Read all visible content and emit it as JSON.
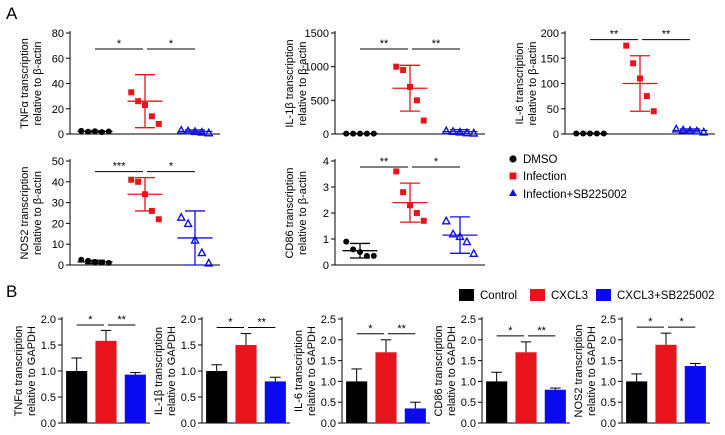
{
  "panel_labels": {
    "a": "A",
    "b": "B"
  },
  "colors": {
    "dmso": "#000000",
    "infection": "#e8141c",
    "sb": "#1010e0",
    "control": "#000000",
    "cxcl3": "#e8141c",
    "cxcl3_sb": "#0a0af0"
  },
  "legend_a": [
    {
      "label": "DMSO",
      "marker": "circle",
      "color": "#000000"
    },
    {
      "label": "Infection",
      "marker": "square",
      "color": "#e8141c"
    },
    {
      "label": "Infection+SB225002",
      "marker": "triangle",
      "color": "#1010e0"
    }
  ],
  "legend_b": [
    {
      "label": "Control",
      "color": "#000000"
    },
    {
      "label": "CXCL3",
      "color": "#e8141c"
    },
    {
      "label": "CXCL3+SB225002",
      "color": "#0a0af0"
    }
  ],
  "chart_data": [
    {
      "type": "scatter",
      "panel": "A",
      "ylabel": [
        "TNFα transcription",
        "relative to β-actin"
      ],
      "ylim": [
        0,
        80
      ],
      "yticks": [
        0,
        20,
        40,
        60,
        80
      ],
      "groups": [
        {
          "name": "DMSO",
          "marker": "circle",
          "color": "#000000",
          "points": [
            2.5,
            1.8,
            2.2,
            1.5,
            2.0
          ],
          "mean": 2.0,
          "sd": 0.5
        },
        {
          "name": "Infection",
          "marker": "square",
          "color": "#e8141c",
          "points": [
            33,
            26,
            23,
            14,
            8
          ],
          "mean": 26,
          "sd": 21
        },
        {
          "name": "Infection+SB225002",
          "marker": "triangle",
          "color": "#1010e0",
          "points": [
            3,
            2.5,
            2,
            1.5,
            1
          ],
          "mean": 2,
          "sd": 1.2
        }
      ],
      "significance": [
        {
          "label": "*"
        },
        {
          "label": "*"
        }
      ]
    },
    {
      "type": "scatter",
      "panel": "A",
      "ylabel": [
        "IL-1β transcription",
        "relative to β-actin"
      ],
      "ylim": [
        0,
        1500
      ],
      "yticks": [
        0,
        500,
        1000,
        1500
      ],
      "groups": [
        {
          "name": "DMSO",
          "marker": "circle",
          "color": "#000000",
          "points": [
            5,
            5,
            5,
            5,
            5
          ],
          "mean": 5,
          "sd": 2
        },
        {
          "name": "Infection",
          "marker": "square",
          "color": "#e8141c",
          "points": [
            1000,
            950,
            700,
            500,
            200
          ],
          "mean": 680,
          "sd": 340
        },
        {
          "name": "Infection+SB225002",
          "marker": "triangle",
          "color": "#1010e0",
          "points": [
            50,
            40,
            30,
            20,
            15
          ],
          "mean": 35,
          "sd": 30
        }
      ],
      "significance": [
        {
          "label": "**"
        },
        {
          "label": "**"
        }
      ]
    },
    {
      "type": "scatter",
      "panel": "A",
      "ylabel": [
        "IL-6 transcription",
        "relative to β-actin"
      ],
      "ylim": [
        0,
        200
      ],
      "yticks": [
        0,
        50,
        100,
        150,
        200
      ],
      "groups": [
        {
          "name": "DMSO",
          "marker": "circle",
          "color": "#000000",
          "points": [
            1,
            1,
            1,
            1,
            1
          ],
          "mean": 1,
          "sd": 0.5
        },
        {
          "name": "Infection",
          "marker": "square",
          "color": "#e8141c",
          "points": [
            175,
            140,
            110,
            75,
            45
          ],
          "mean": 100,
          "sd": 55
        },
        {
          "name": "Infection+SB225002",
          "marker": "triangle",
          "color": "#1010e0",
          "points": [
            10,
            8,
            7,
            6,
            4
          ],
          "mean": 7,
          "sd": 3
        }
      ],
      "significance": [
        {
          "label": "**"
        },
        {
          "label": "**"
        }
      ]
    },
    {
      "type": "scatter",
      "panel": "A",
      "ylabel": [
        "NOS2 transcription",
        "relative to β-actin"
      ],
      "ylim": [
        0,
        50
      ],
      "yticks": [
        0,
        10,
        20,
        30,
        40,
        50
      ],
      "groups": [
        {
          "name": "DMSO",
          "marker": "circle",
          "color": "#000000",
          "points": [
            2.5,
            2,
            1.5,
            1.2,
            1
          ],
          "mean": 1.5,
          "sd": 0.8
        },
        {
          "name": "Infection",
          "marker": "square",
          "color": "#e8141c",
          "points": [
            41,
            40,
            34,
            26,
            22
          ],
          "mean": 34,
          "sd": 8
        },
        {
          "name": "Infection+SB225002",
          "marker": "triangle",
          "color": "#1010e0",
          "points": [
            23,
            20,
            12,
            6,
            1
          ],
          "mean": 13,
          "sd": 13
        }
      ],
      "significance": [
        {
          "label": "***"
        },
        {
          "label": "*"
        }
      ]
    },
    {
      "type": "scatter",
      "panel": "A",
      "ylabel": [
        "CD86 transcription",
        "relative to β-actin"
      ],
      "ylim": [
        0,
        4
      ],
      "yticks": [
        0,
        1,
        2,
        3,
        4
      ],
      "groups": [
        {
          "name": "DMSO",
          "marker": "circle",
          "color": "#000000",
          "points": [
            0.9,
            0.6,
            0.5,
            0.35,
            0.35
          ],
          "mean": 0.55,
          "sd": 0.28
        },
        {
          "name": "Infection",
          "marker": "square",
          "color": "#e8141c",
          "points": [
            3.6,
            2.8,
            2.3,
            2.0,
            1.7
          ],
          "mean": 2.4,
          "sd": 0.75
        },
        {
          "name": "Infection+SB225002",
          "marker": "triangle",
          "color": "#1010e0",
          "points": [
            1.7,
            1.2,
            1.1,
            0.9,
            0.45
          ],
          "mean": 1.15,
          "sd": 0.7
        }
      ],
      "significance": [
        {
          "label": "**"
        },
        {
          "label": "*"
        }
      ]
    },
    {
      "type": "bar",
      "panel": "B",
      "ylabel": [
        "TNFα transcription",
        "relative to GAPDH"
      ],
      "categories": [
        "Control",
        "CXCL3",
        "CXCL3+SB225002"
      ],
      "ylim": [
        0,
        2.0
      ],
      "yticks": [
        0.0,
        0.5,
        1.0,
        1.5,
        2.0
      ],
      "values": [
        1.0,
        1.58,
        0.93
      ],
      "errors": [
        0.25,
        0.2,
        0.04
      ],
      "significance": [
        {
          "label": "*"
        },
        {
          "label": "**"
        }
      ]
    },
    {
      "type": "bar",
      "panel": "B",
      "ylabel": [
        "IL-1β transcription",
        "relative to GAPDH"
      ],
      "categories": [
        "Control",
        "CXCL3",
        "CXCL3+SB225002"
      ],
      "ylim": [
        0,
        2.0
      ],
      "yticks": [
        0.0,
        0.5,
        1.0,
        1.5,
        2.0
      ],
      "values": [
        1.0,
        1.5,
        0.8
      ],
      "errors": [
        0.12,
        0.22,
        0.08
      ],
      "significance": [
        {
          "label": "*"
        },
        {
          "label": "**"
        }
      ]
    },
    {
      "type": "bar",
      "panel": "B",
      "ylabel": [
        "IL-6 transcription",
        "relative to GAPDH"
      ],
      "categories": [
        "Control",
        "CXCL3",
        "CXCL3+SB225002"
      ],
      "ylim": [
        0,
        2.5
      ],
      "yticks": [
        0.0,
        0.5,
        1.0,
        1.5,
        2.0,
        2.5
      ],
      "values": [
        1.0,
        1.7,
        0.35
      ],
      "errors": [
        0.3,
        0.3,
        0.15
      ],
      "significance": [
        {
          "label": "*"
        },
        {
          "label": "**"
        }
      ]
    },
    {
      "type": "bar",
      "panel": "B",
      "ylabel": [
        "CD86 transcription",
        "relative to GAPDH"
      ],
      "categories": [
        "Control",
        "CXCL3",
        "CXCL3+SB225002"
      ],
      "ylim": [
        0,
        2.5
      ],
      "yticks": [
        0.0,
        0.5,
        1.0,
        1.5,
        2.0,
        2.5
      ],
      "values": [
        1.0,
        1.7,
        0.8
      ],
      "errors": [
        0.22,
        0.25,
        0.04
      ],
      "significance": [
        {
          "label": "*"
        },
        {
          "label": "**"
        }
      ]
    },
    {
      "type": "bar",
      "panel": "B",
      "ylabel": [
        "NOS2 transcription",
        "relative to GAPDH"
      ],
      "categories": [
        "Control",
        "CXCL3",
        "CXCL3+SB225002"
      ],
      "ylim": [
        0,
        2.5
      ],
      "yticks": [
        0.0,
        0.5,
        1.0,
        1.5,
        2.0,
        2.5
      ],
      "values": [
        1.0,
        1.88,
        1.37
      ],
      "errors": [
        0.18,
        0.28,
        0.06
      ],
      "significance": [
        {
          "label": "*"
        },
        {
          "label": "*"
        }
      ]
    }
  ]
}
